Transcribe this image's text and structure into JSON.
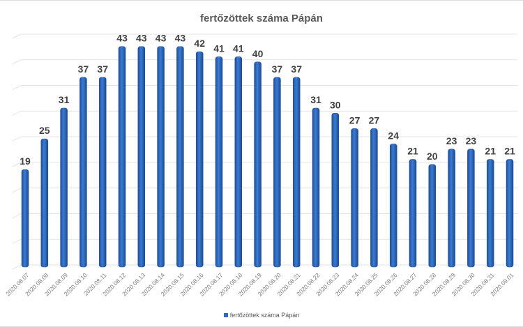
{
  "chart_data": {
    "type": "bar",
    "title": "fertőzöttek száma Pápán",
    "xlabel": "",
    "ylabel": "",
    "ylim": [
      0,
      45
    ],
    "grid": true,
    "legend_position": "bottom",
    "categories": [
      "2020.08.07",
      "2020.08.08",
      "2020.08.09",
      "2020.08.10",
      "2020.08.11",
      "2020.08.12",
      "2020.08.13",
      "2020.08.14",
      "2020.08.15",
      "2020.08.16",
      "2020.08.17",
      "2020.08.18",
      "2020.08.19",
      "2020.08.20",
      "2020.08.21",
      "2020.08.22",
      "2020.08.23",
      "2020.08.24",
      "2020.08.25",
      "2020.08.26",
      "2020.08.27",
      "2020.08.28",
      "2020.08.29",
      "2020.08.30",
      "2020.08.31",
      "2020.09.01"
    ],
    "series": [
      {
        "name": "fertőzöttek száma Pápán",
        "color": "#2e6bc0",
        "values": [
          19,
          25,
          31,
          37,
          37,
          43,
          43,
          43,
          43,
          42,
          41,
          41,
          40,
          37,
          37,
          31,
          30,
          27,
          27,
          24,
          21,
          20,
          23,
          23,
          21,
          21
        ]
      }
    ]
  }
}
